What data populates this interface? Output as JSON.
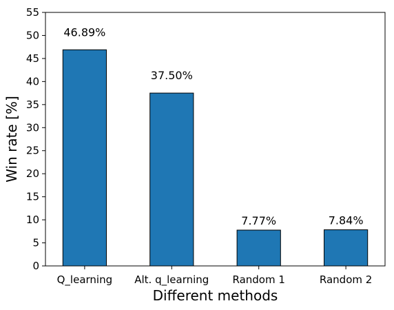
{
  "chart_data": {
    "type": "bar",
    "title": "",
    "xlabel": "Different methods",
    "ylabel": "Win rate [%]",
    "categories": [
      "Q_learning",
      "Alt. q_learning",
      "Random 1",
      "Random 2"
    ],
    "values": [
      46.89,
      37.5,
      7.77,
      7.84
    ],
    "data_labels": [
      "46.89%",
      "37.50%",
      "7.77%",
      "7.84%"
    ],
    "ylim": [
      0,
      55
    ],
    "yticks": [
      0,
      5,
      10,
      15,
      20,
      25,
      30,
      35,
      40,
      45,
      50,
      55
    ],
    "grid": false,
    "legend": "none",
    "bar_color": "#1f77b4",
    "edge_color": "#000000"
  }
}
